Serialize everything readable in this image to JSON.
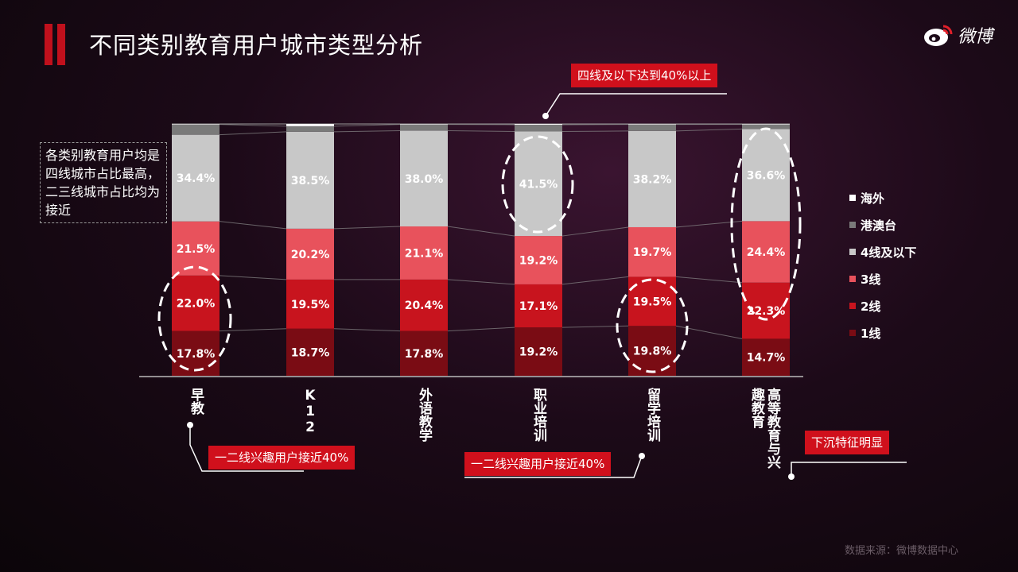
{
  "page": {
    "title": "不同类别教育用户城市类型分析",
    "logo_text": "微博",
    "note": "各类别教育用户均是四线城市占比最高，二三线城市占比均为接近",
    "source": "数据来源：微博数据中心"
  },
  "callouts": {
    "top": "四线及以下达到40%以上",
    "left": "一二线兴趣用户接近40%",
    "middle": "一二线兴趣用户接近40%",
    "right": "下沉特征明显"
  },
  "legend": [
    {
      "label": "海外",
      "color": "#ffffff"
    },
    {
      "label": "港澳台",
      "color": "#7a7a7a"
    },
    {
      "label": "4线及以下",
      "color": "#c8c8c8"
    },
    {
      "label": "3线",
      "color": "#e8525c"
    },
    {
      "label": "2线",
      "color": "#c8141e"
    },
    {
      "label": "1线",
      "color": "#7a0c14"
    }
  ],
  "chart_data": {
    "type": "bar",
    "stacked": true,
    "normalized_percent": true,
    "categories": [
      "早教",
      "K12",
      "外语教学",
      "职业培训",
      "留学培训",
      "高等教育与兴趣教育"
    ],
    "series": [
      {
        "name": "1线",
        "color": "#7a0c14",
        "values": [
          17.8,
          18.7,
          17.8,
          19.2,
          19.8,
          14.7
        ],
        "labels": [
          "17.8%",
          "18.7%",
          "17.8%",
          "19.2%",
          "19.8%",
          "14.7%"
        ]
      },
      {
        "name": "2线",
        "color": "#c8141e",
        "values": [
          22.0,
          19.5,
          20.4,
          17.1,
          19.5,
          22.3
        ],
        "labels": [
          "22.0%",
          "19.5%",
          "20.4%",
          "17.1%",
          "19.5%",
          "22.3%"
        ]
      },
      {
        "name": "3线",
        "color": "#e8525c",
        "values": [
          21.5,
          20.2,
          21.1,
          19.2,
          19.7,
          24.4
        ],
        "labels": [
          "21.5%",
          "20.2%",
          "21.1%",
          "19.2%",
          "19.7%",
          "24.4%"
        ]
      },
      {
        "name": "4线及以下",
        "color": "#c8c8c8",
        "values": [
          34.4,
          38.5,
          38.0,
          41.5,
          38.2,
          36.6
        ],
        "labels": [
          "34.4%",
          "38.5%",
          "38.0%",
          "41.5%",
          "38.2%",
          "36.6%"
        ]
      },
      {
        "name": "港澳台",
        "color": "#7a7a7a",
        "values": [
          4.1,
          2.2,
          2.5,
          2.7,
          2.6,
          1.8
        ],
        "labels": []
      },
      {
        "name": "海外",
        "color": "#ffffff",
        "values": [
          0.2,
          0.9,
          0.2,
          0.3,
          0.2,
          0.2
        ],
        "labels": []
      }
    ],
    "highlights": [
      {
        "category": 0,
        "series": "2线"
      },
      {
        "category": 3,
        "series": "4线及以下"
      },
      {
        "category": 4,
        "series": "1线"
      },
      {
        "category": 5,
        "series": "3线"
      }
    ]
  }
}
